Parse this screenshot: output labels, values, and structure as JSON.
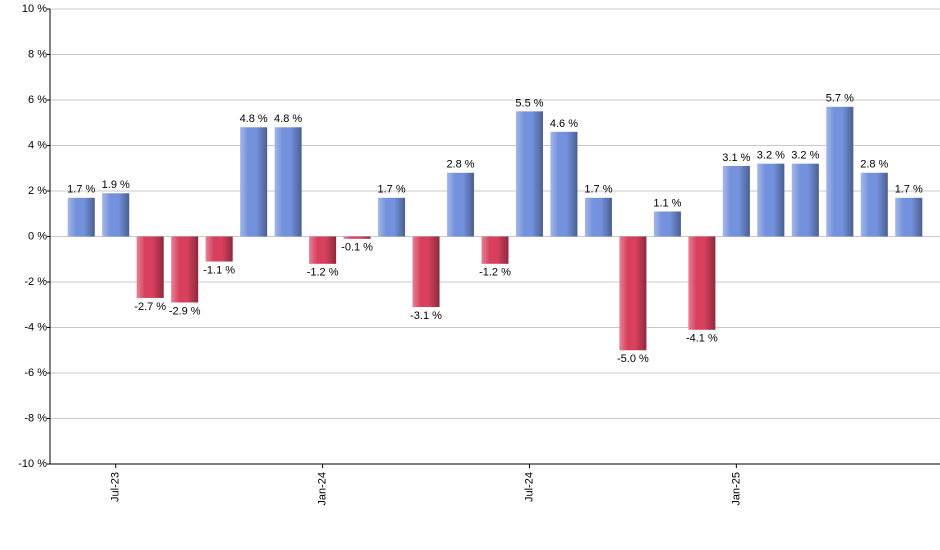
{
  "chart_data": {
    "type": "bar",
    "categories": [
      null,
      "Jul-23",
      null,
      null,
      null,
      null,
      null,
      "Jan-24",
      null,
      null,
      null,
      null,
      null,
      "Jul-24",
      null,
      null,
      null,
      null,
      null,
      "Jan-25",
      null,
      null,
      null,
      null,
      null
    ],
    "values": [
      1.7,
      1.9,
      -2.7,
      -2.9,
      -1.1,
      4.8,
      4.8,
      -1.2,
      -0.1,
      1.7,
      -3.1,
      2.8,
      -1.2,
      5.5,
      4.6,
      1.7,
      -5.0,
      1.1,
      -4.1,
      3.1,
      3.2,
      3.2,
      5.7,
      2.8,
      1.7
    ],
    "value_labels": [
      "1.7 %",
      "1.9 %",
      "-2.7 %",
      "-2.9 %",
      "-1.1 %",
      "4.8 %",
      "4.8 %",
      "-1.2 %",
      "-0.1 %",
      "1.7 %",
      "-3.1 %",
      "2.8 %",
      "-1.2 %",
      "5.5 %",
      "4.6 %",
      "1.7 %",
      "-5.0 %",
      "1.1 %",
      "-4.1 %",
      "3.1 %",
      "3.2 %",
      "3.2 %",
      "5.7 %",
      "2.8 %",
      "1.7 %"
    ],
    "color": "#7391dc",
    "negative_color": "#d8405e",
    "ylim": [
      -10,
      10
    ],
    "yticks": [
      {
        "value": -10,
        "label": "-10 %"
      },
      {
        "value": -8,
        "label": "-8 %"
      },
      {
        "value": -6,
        "label": "-6 %"
      },
      {
        "value": -4,
        "label": "-4 %"
      },
      {
        "value": -2,
        "label": "-2 %"
      },
      {
        "value": 0,
        "label": "0 %"
      },
      {
        "value": 2,
        "label": "2 %"
      },
      {
        "value": 4,
        "label": "4 %"
      },
      {
        "value": 6,
        "label": "6 %"
      },
      {
        "value": 8,
        "label": "8 %"
      },
      {
        "value": 10,
        "label": "10 %"
      }
    ],
    "grid": true
  }
}
